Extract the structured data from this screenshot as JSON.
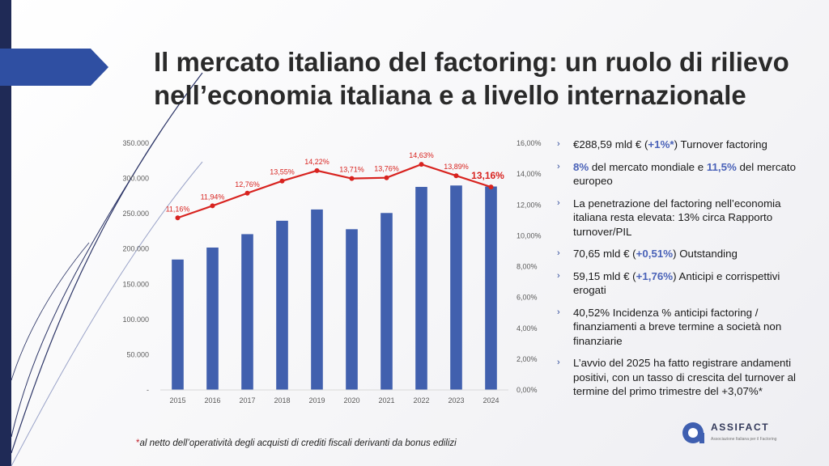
{
  "slide": {
    "title_line1": "Il mercato italiano del factoring: un ruolo di rilievo",
    "title_line2": "nell’economia italiana e a livello internazionale"
  },
  "colors": {
    "bar": "#4160ae",
    "line": "#d8231f",
    "title": "#2a2a2a",
    "accent": "#4a62b8",
    "band": "#1f2a56"
  },
  "chart_data": {
    "type": "bar",
    "categories": [
      "2015",
      "2016",
      "2017",
      "2018",
      "2019",
      "2020",
      "2021",
      "2022",
      "2023",
      "2024"
    ],
    "series": [
      {
        "axis": "left",
        "type": "bar",
        "values": [
          185000,
          202000,
          221000,
          240000,
          256000,
          228000,
          251000,
          288000,
          290000,
          288590
        ]
      },
      {
        "axis": "right",
        "type": "line",
        "values": [
          11.16,
          11.94,
          12.76,
          13.55,
          14.22,
          13.71,
          13.76,
          14.63,
          13.89,
          13.16
        ],
        "labels": [
          "11,16%",
          "11,94%",
          "12,76%",
          "13,55%",
          "14,22%",
          "13,71%",
          "13,76%",
          "14,63%",
          "13,89%",
          "13,16%"
        ]
      }
    ],
    "ylim": [
      0,
      350000
    ],
    "y2lim": [
      0,
      16
    ],
    "yticks": [
      "-",
      "50.000",
      "100.000",
      "150.000",
      "200.000",
      "250.000",
      "300.000",
      "350.000"
    ],
    "y2ticks": [
      "0,00%",
      "2,00%",
      "4,00%",
      "6,00%",
      "8,00%",
      "10,00%",
      "12,00%",
      "14,00%",
      "16,00%"
    ],
    "grid": false
  },
  "bullets": [
    {
      "parts": [
        {
          "t": "€288,59 mld € ("
        },
        {
          "t": "+1%*",
          "hl": true
        },
        {
          "t": ") Turnover factoring"
        }
      ]
    },
    {
      "parts": [
        {
          "t": "8%",
          "hl": true
        },
        {
          "t": " del mercato mondiale e "
        },
        {
          "t": "11,5%",
          "hl": true
        },
        {
          "t": " del mercato europeo"
        }
      ]
    },
    {
      "parts": [
        {
          "t": "La penetrazione del factoring nell’economia italiana resta elevata: 13% circa Rapporto turnover/PIL"
        }
      ]
    },
    {
      "parts": [
        {
          "t": "70,65 mld € ("
        },
        {
          "t": "+0,51%",
          "hl": true
        },
        {
          "t": ") Outstanding"
        }
      ]
    },
    {
      "parts": [
        {
          "t": "59,15 mld € ("
        },
        {
          "t": "+1,76%",
          "hl": true
        },
        {
          "t": ") Anticipi e corrispettivi erogati"
        }
      ]
    },
    {
      "parts": [
        {
          "t": "40,52% Incidenza % anticipi factoring / finanziamenti a breve termine a società non finanziarie"
        }
      ]
    },
    {
      "parts": [
        {
          "t": "L’avvio del 2025 ha fatto registrare andamenti positivi, con un tasso di crescita del turnover al termine del primo trimestre del +3,07%*"
        }
      ]
    }
  ],
  "bullet_marker": "›",
  "footnote": {
    "star": "*",
    "text": "al netto dell’operatività degli acquisti di crediti fiscali derivanti da bonus edilizi"
  },
  "logo": {
    "name": "ASSIFACT",
    "subtitle": "Associazione Italiana per il Factoring"
  }
}
